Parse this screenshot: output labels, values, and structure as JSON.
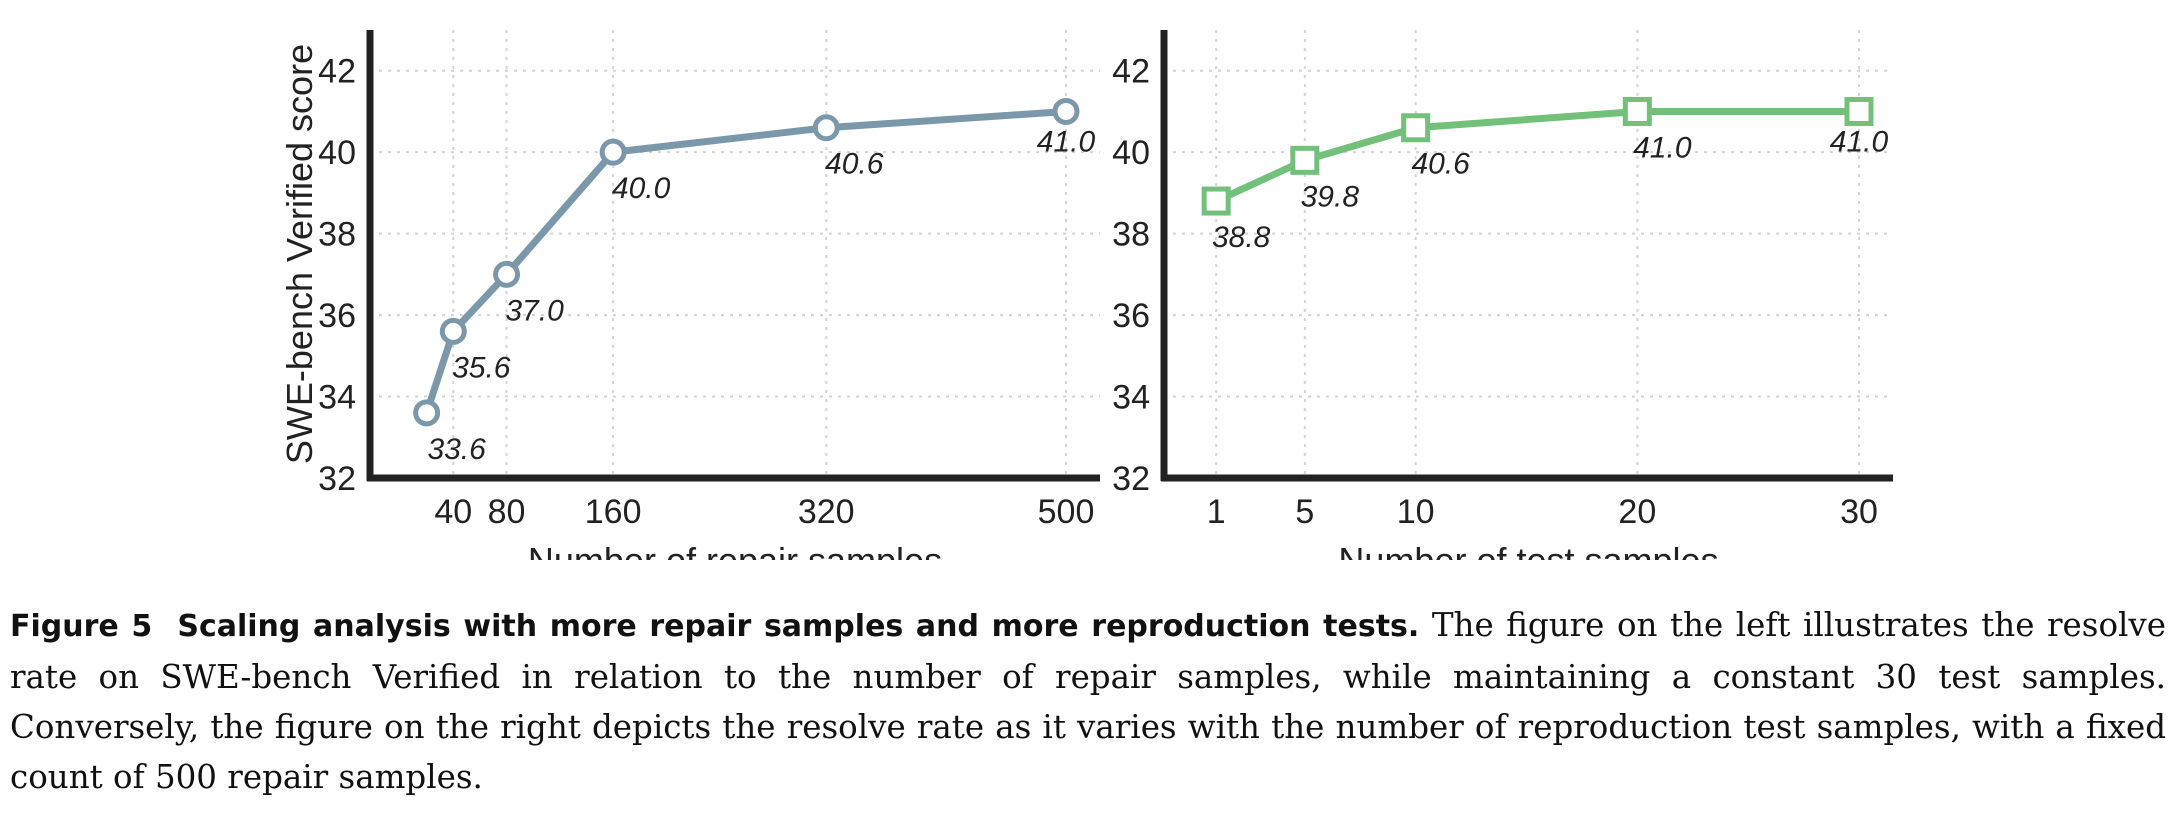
{
  "chart_data": [
    {
      "type": "line",
      "xlabel": "Number of repair samples",
      "ylabel": "SWE-bench Verified score",
      "x": [
        20,
        40,
        80,
        160,
        320,
        500
      ],
      "xticks": [
        40,
        80,
        160,
        320,
        500
      ],
      "xlim": [
        0,
        500
      ],
      "ylim": [
        32,
        43
      ],
      "yticks": [
        32,
        34,
        36,
        38,
        40,
        42
      ],
      "grid": true,
      "series": [
        {
          "values": [
            33.6,
            35.6,
            37.0,
            40.0,
            40.6,
            41.0
          ],
          "labels": [
            "33.6",
            "35.6",
            "37.0",
            "40.0",
            "40.6",
            "41.0"
          ],
          "marker": "circle",
          "color": "#7b98ab"
        }
      ]
    },
    {
      "type": "line",
      "xlabel": "Number of test samples",
      "ylabel": "",
      "x": [
        1,
        5,
        10,
        20,
        30
      ],
      "xticks": [
        1,
        5,
        10,
        20,
        30
      ],
      "xlim": [
        0,
        30
      ],
      "ylim": [
        32,
        43
      ],
      "yticks": [
        32,
        34,
        36,
        38,
        40,
        42
      ],
      "grid": true,
      "series": [
        {
          "values": [
            38.8,
            39.8,
            40.6,
            41.0,
            41.0
          ],
          "labels": [
            "38.8",
            "39.8",
            "40.6",
            "41.0",
            "41.0"
          ],
          "marker": "square",
          "color": "#72c07a"
        }
      ]
    }
  ],
  "caption": {
    "label": "Figure 5",
    "title": "Scaling analysis with more repair samples and more reproduction tests.",
    "text": "The figure on the left illustrates the resolve rate on SWE-bench Verified in relation to the number of repair samples, while maintaining a constant 30 test samples. Conversely, the figure on the right depicts the resolve rate as it varies with the number of reproduction test samples, with a fixed count of 500 repair samples."
  }
}
